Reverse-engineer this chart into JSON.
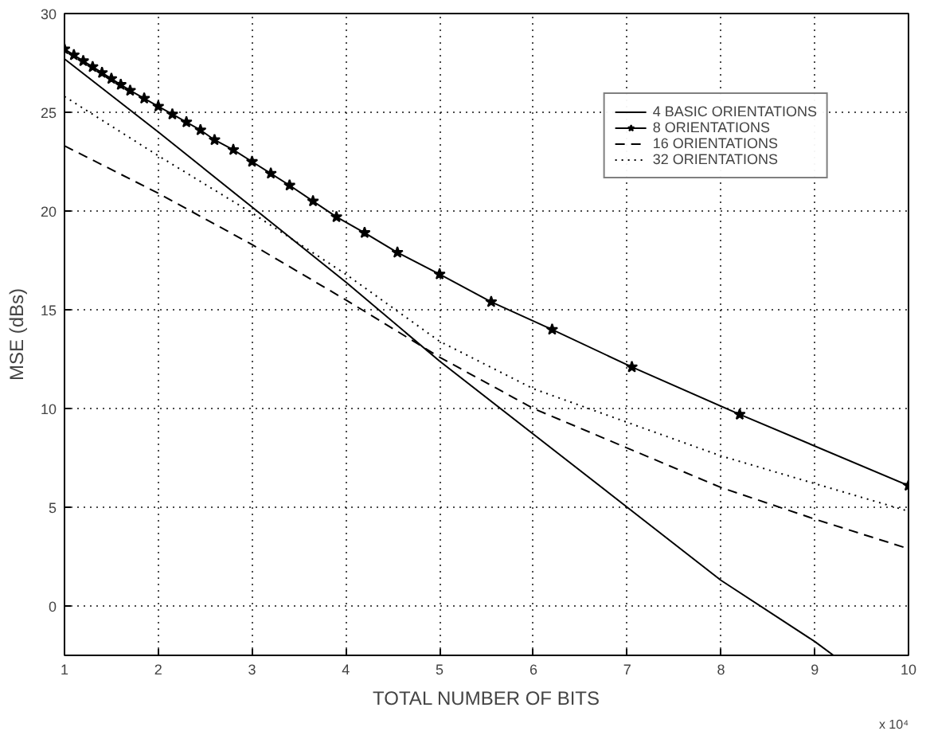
{
  "chart_data": {
    "type": "line",
    "xlabel": "TOTAL NUMBER OF BITS",
    "ylabel": "MSE (dBs)",
    "xlim": [
      1,
      10
    ],
    "ylim": [
      -2.5,
      30
    ],
    "xticks": [
      1,
      2,
      3,
      4,
      5,
      6,
      7,
      8,
      9,
      10
    ],
    "yticks": [
      0,
      5,
      10,
      15,
      20,
      25,
      30
    ],
    "grid": true,
    "legend": "top right",
    "annotations": [
      "x 10⁴"
    ],
    "series": [
      {
        "name": "4 BASIC ORIENTATIONS",
        "color": "#000000",
        "line_style": "solid",
        "marker": "none",
        "x": [
          1,
          2,
          3,
          4,
          5,
          6,
          7,
          8,
          9,
          9.2
        ],
        "values": [
          27.7,
          24.0,
          20.2,
          16.4,
          12.4,
          8.7,
          5.0,
          1.3,
          -1.8,
          -2.5
        ]
      },
      {
        "name": "8 ORIENTATIONS",
        "color": "#000000",
        "line_style": "solid",
        "marker": "star",
        "x": [
          1.0,
          1.1,
          1.2,
          1.3,
          1.4,
          1.5,
          1.6,
          1.7,
          1.85,
          2.0,
          2.15,
          2.3,
          2.45,
          2.6,
          2.8,
          3.0,
          3.2,
          3.4,
          3.65,
          3.9,
          4.2,
          4.55,
          5.0,
          5.55,
          6.2,
          7.05,
          8.2,
          10.0
        ],
        "values": [
          28.2,
          27.9,
          27.6,
          27.3,
          27.0,
          26.7,
          26.4,
          26.1,
          25.7,
          25.3,
          24.9,
          24.5,
          24.1,
          23.6,
          23.1,
          22.5,
          21.9,
          21.3,
          20.5,
          19.7,
          18.9,
          17.9,
          16.8,
          15.4,
          14.0,
          12.1,
          9.7,
          6.1
        ]
      },
      {
        "name": "16 ORIENTATIONS",
        "color": "#000000",
        "line_style": "dashed",
        "marker": "none",
        "x": [
          1,
          2,
          3,
          4,
          5,
          6,
          7,
          8,
          9,
          10
        ],
        "values": [
          23.3,
          20.9,
          18.3,
          15.5,
          12.6,
          10.0,
          8.0,
          6.0,
          4.4,
          2.9
        ]
      },
      {
        "name": "32 ORIENTATIONS",
        "color": "#000000",
        "line_style": "dotted",
        "marker": "none",
        "x": [
          1,
          2,
          3,
          4,
          5,
          6,
          7,
          8,
          9,
          10
        ],
        "values": [
          25.8,
          22.8,
          19.9,
          16.8,
          13.4,
          11.0,
          9.3,
          7.6,
          6.2,
          4.8
        ]
      }
    ]
  }
}
